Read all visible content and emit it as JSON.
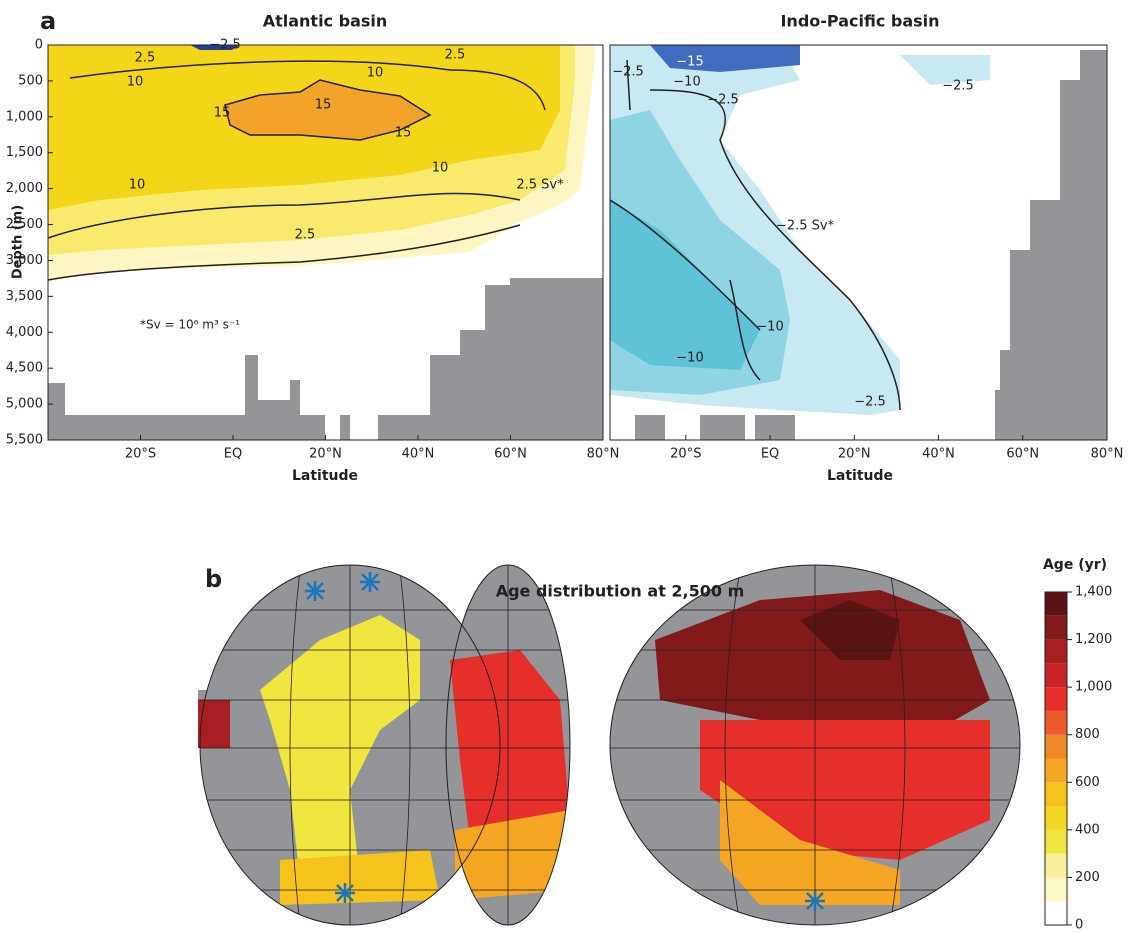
{
  "chart_data": [
    {
      "type": "contour",
      "panel_label": "a",
      "title": "Atlantic basin",
      "ylabel": "Depth (m)",
      "xlabel": "Latitude",
      "xlim": [
        -40,
        80
      ],
      "xticks": [
        {
          "value": -20,
          "label": "20°S"
        },
        {
          "value": 0,
          "label": "EQ"
        },
        {
          "value": 20,
          "label": "20°N"
        },
        {
          "value": 40,
          "label": "40°N"
        },
        {
          "value": 60,
          "label": "60°N"
        },
        {
          "value": 80,
          "label": "80°N"
        }
      ],
      "ylim": [
        5500,
        0
      ],
      "yticks": [
        0,
        500,
        {
          "value": 1000,
          "label": "1,000"
        },
        {
          "value": 1500,
          "label": "1,500"
        },
        {
          "value": 2000,
          "label": "2,000"
        },
        {
          "value": 2500,
          "label": "2,500"
        },
        {
          "value": 3000,
          "label": "3,000"
        },
        {
          "value": 3500,
          "label": "3,500"
        },
        {
          "value": 4000,
          "label": "4,000"
        },
        {
          "value": 4500,
          "label": "4,500"
        },
        {
          "value": 5000,
          "label": "5,000"
        },
        {
          "value": 5500,
          "label": "5,500"
        }
      ],
      "contour_labels": [
        "−2.5",
        "2.5",
        "2.5",
        "10",
        "10",
        "15",
        "15",
        "15",
        "10",
        "10",
        "2.5 Sv*",
        "2.5"
      ],
      "annotation": "*Sv = 10⁶ m³ s⁻¹"
    },
    {
      "type": "contour",
      "title": "Indo-Pacific basin",
      "xlabel": "Latitude",
      "xlim": [
        -38,
        80
      ],
      "xticks": [
        {
          "value": -20,
          "label": "20°S"
        },
        {
          "value": 0,
          "label": "EQ"
        },
        {
          "value": 20,
          "label": "20°N"
        },
        {
          "value": 40,
          "label": "40°N"
        },
        {
          "value": 60,
          "label": "60°N"
        },
        {
          "value": 80,
          "label": "80°N"
        }
      ],
      "ylim": [
        5500,
        0
      ],
      "contour_labels": [
        "−15",
        "−2.5",
        "−10",
        "−2.5",
        "−2.5",
        "−2.5 Sv*",
        "−10",
        "−10",
        "−2.5"
      ]
    },
    {
      "type": "map",
      "panel_label": "b",
      "title": "Age distribution at 2,500 m",
      "colorbar": {
        "label": "Age (yr)",
        "lim": [
          0,
          1400
        ],
        "ticks": [
          0,
          200,
          400,
          600,
          800,
          {
            "value": 1000,
            "label": "1,000"
          },
          {
            "value": 1200,
            "label": "1,200"
          },
          {
            "value": 1400,
            "label": "1,400"
          }
        ],
        "colors": [
          "#ffffff",
          "#fdf8c4",
          "#f8f09c",
          "#f1e640",
          "#f2d820",
          "#f6c21c",
          "#f5a623",
          "#f08a27",
          "#ee5a2c",
          "#e62f2a",
          "#c8232a",
          "#a51f23",
          "#821a1c",
          "#5a1414"
        ]
      }
    }
  ]
}
